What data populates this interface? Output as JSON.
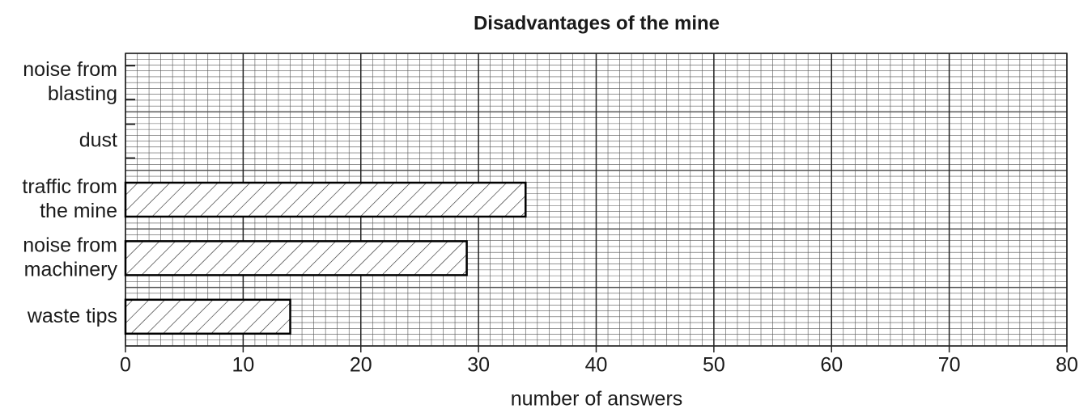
{
  "chart_data": {
    "type": "bar",
    "orientation": "horizontal",
    "title": "Disadvantages of the mine",
    "categories": [
      "noise from\nblasting",
      "dust",
      "traffic from\nthe mine",
      "noise from\nmachinery",
      "waste tips"
    ],
    "values": [
      null,
      null,
      34,
      29,
      14
    ],
    "color": "#000000",
    "xlabel": "number of answers",
    "xlim": [
      0,
      80
    ],
    "xticks": [
      0,
      10,
      20,
      30,
      40,
      50,
      60,
      70,
      80
    ],
    "grid": true
  }
}
